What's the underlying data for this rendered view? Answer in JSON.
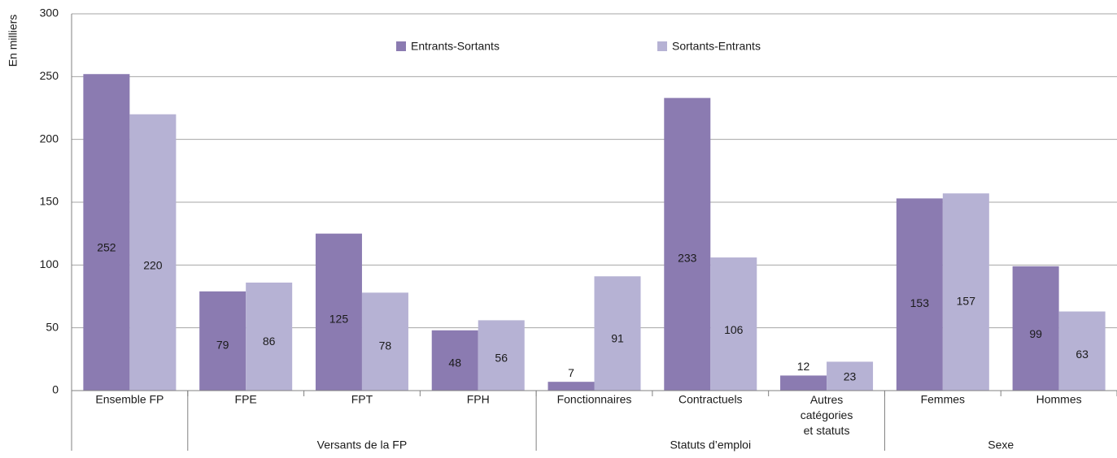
{
  "chart_data": {
    "type": "bar",
    "y_label": "En milliers",
    "categories": [
      "Ensemble FP",
      "FPE",
      "FPT",
      "FPH",
      "Fonctionnaires",
      "Contractuels",
      "Autres catégories et statuts",
      "Femmes",
      "Hommes"
    ],
    "groups": [
      {
        "name": "Versants de la FP",
        "categories": [
          "FPE",
          "FPT",
          "FPH"
        ]
      },
      {
        "name": "Statuts d’emploi",
        "categories": [
          "Fonctionnaires",
          "Contractuels",
          "Autres catégories et statuts"
        ]
      },
      {
        "name": "Sexe",
        "categories": [
          "Femmes",
          "Hommes"
        ]
      }
    ],
    "series": [
      {
        "name": "Entrants-Sortants",
        "color": "#8b7bb1",
        "values": [
          252,
          79,
          125,
          48,
          7,
          233,
          12,
          153,
          99
        ]
      },
      {
        "name": "Sortants-Entrants",
        "color": "#b6b2d4",
        "values": [
          220,
          86,
          78,
          56,
          91,
          106,
          23,
          157,
          63
        ]
      }
    ],
    "ylim": [
      0,
      300
    ],
    "yticks": [
      0,
      50,
      100,
      150,
      200,
      250,
      300
    ],
    "grid": true,
    "legend": "top"
  }
}
